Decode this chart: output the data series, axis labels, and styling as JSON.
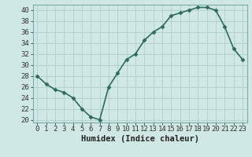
{
  "x": [
    0,
    1,
    2,
    3,
    4,
    5,
    6,
    7,
    8,
    9,
    10,
    11,
    12,
    13,
    14,
    15,
    16,
    17,
    18,
    19,
    20,
    21,
    22,
    23
  ],
  "y": [
    28,
    26.5,
    25.5,
    25,
    24,
    22,
    20.5,
    20,
    26,
    28.5,
    31,
    32,
    34.5,
    36,
    37,
    39,
    39.5,
    40,
    40.5,
    40.5,
    40,
    37,
    33,
    31
  ],
  "line_color": "#2e6b5e",
  "marker_color": "#2e6b5e",
  "bg_color": "#cfe8e5",
  "grid_color": "#afd0cc",
  "xlabel": "Humidex (Indice chaleur)",
  "xlim": [
    -0.5,
    23.5
  ],
  "ylim": [
    19.5,
    41
  ],
  "yticks": [
    20,
    22,
    24,
    26,
    28,
    30,
    32,
    34,
    36,
    38,
    40
  ],
  "xticks": [
    0,
    1,
    2,
    3,
    4,
    5,
    6,
    7,
    8,
    9,
    10,
    11,
    12,
    13,
    14,
    15,
    16,
    17,
    18,
    19,
    20,
    21,
    22,
    23
  ],
  "xlabel_fontsize": 7.5,
  "tick_fontsize": 6.5,
  "linewidth": 1.2,
  "markersize": 2.5
}
